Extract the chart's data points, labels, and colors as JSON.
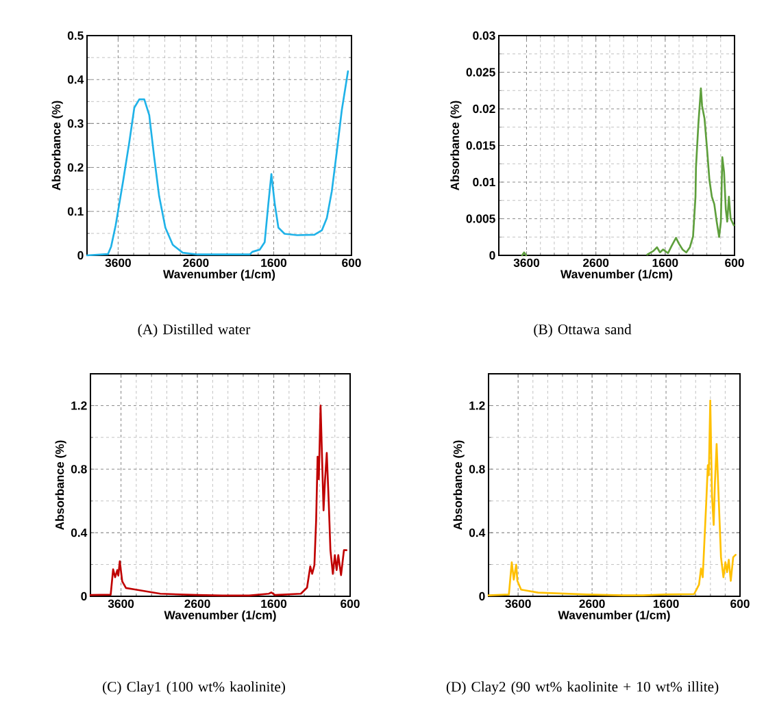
{
  "chart_data": [
    {
      "type": "line",
      "title": "(A) Distilled water",
      "xlabel": "Wavenumber  (1/cm)",
      "ylabel": "Absorbance  (%)",
      "xlim": [
        4000,
        600
      ],
      "xticks": [
        3600,
        2600,
        1600,
        600
      ],
      "ylim": [
        0,
        0.5
      ],
      "yticks": [
        0,
        0.1,
        0.2,
        0.3,
        0.4,
        0.5
      ],
      "grid": true,
      "marker": "none",
      "series": [
        {
          "color": "#1fb2e8",
          "x": [
            4000,
            3730,
            3690,
            3632,
            3536,
            3456,
            3392,
            3328,
            3264,
            3200,
            3137,
            3073,
            2993,
            2898,
            2770,
            2578,
            1907,
            1875,
            1780,
            1716,
            1668,
            1630,
            1588,
            1540,
            1460,
            1300,
            1077,
            981,
            917,
            853,
            789,
            725,
            645
          ],
          "values": [
            0,
            0.003,
            0.02,
            0.068,
            0.169,
            0.258,
            0.336,
            0.355,
            0.355,
            0.319,
            0.224,
            0.135,
            0.063,
            0.024,
            0.006,
            0.002,
            0.002,
            0.008,
            0.013,
            0.03,
            0.119,
            0.185,
            0.119,
            0.063,
            0.049,
            0.046,
            0.047,
            0.057,
            0.085,
            0.146,
            0.236,
            0.33,
            0.419
          ]
        }
      ]
    },
    {
      "type": "line",
      "title": "(B) Ottawa sand",
      "xlabel": "Wavenumber  (1/cm)",
      "ylabel": "Absorbance  (%)",
      "xlim": [
        4000,
        600
      ],
      "xticks": [
        3600,
        2600,
        1600,
        600
      ],
      "ylim": [
        0,
        0.03
      ],
      "yticks": [
        0,
        0.005,
        0.01,
        0.015,
        0.02,
        0.025,
        0.03
      ],
      "grid": true,
      "marker": "none",
      "series": [
        {
          "color": "#5e9f3c",
          "x": [
            3665,
            3635,
            3605,
            3000,
            1859,
            1771,
            1718,
            1676,
            1631,
            1560,
            1507,
            1444,
            1402,
            1349,
            1296,
            1244,
            1198,
            1163,
            1156,
            1121,
            1085,
            1068,
            1033,
            998,
            962,
            927,
            892,
            857,
            822,
            797,
            776,
            751,
            726,
            705,
            681,
            656,
            610
          ],
          "values": [
            0,
            0.0004,
            0,
            null,
            0.0001,
            0.0006,
            0.0011,
            0.0004,
            0.0008,
            0.0003,
            0.0013,
            0.0024,
            0.0016,
            0.0008,
            0.0004,
            0.0011,
            0.0026,
            0.008,
            0.012,
            0.018,
            0.0228,
            0.0204,
            0.0187,
            0.0147,
            0.0103,
            0.008,
            0.007,
            0.0046,
            0.0025,
            0.0046,
            0.0134,
            0.0114,
            0.0063,
            0.0046,
            0.008,
            0.005,
            0.0041
          ]
        }
      ]
    },
    {
      "type": "line",
      "title": "(C) Clay1 (100 wt% kaolinite)",
      "xlabel": "Wavenumber  (1/cm)",
      "ylabel": "Absorbance  (%)",
      "xlim": [
        4000,
        600
      ],
      "xticks": [
        3600,
        2600,
        1600,
        600
      ],
      "ylim": [
        0,
        1.4
      ],
      "yticks": [
        0,
        0.4,
        0.8,
        1.2
      ],
      "grid": true,
      "marker": "none",
      "series": [
        {
          "color": "#c00000",
          "x": [
            4000,
            3735,
            3703,
            3677,
            3648,
            3635,
            3616,
            3584,
            3535,
            3406,
            3084,
            2600,
            2277,
            1923,
            1665,
            1632,
            1584,
            1245,
            1164,
            1122,
            1097,
            1068,
            1045,
            1026,
            1010,
            987,
            948,
            929,
            906,
            881,
            858,
            826,
            800,
            777,
            755,
            719,
            681,
            648
          ],
          "values": [
            0.008,
            0.01,
            0.17,
            0.12,
            0.165,
            0.13,
            0.22,
            0.094,
            0.052,
            0.042,
            0.016,
            0.008,
            0.005,
            0.005,
            0.016,
            0.024,
            0.008,
            0.016,
            0.055,
            0.188,
            0.141,
            0.196,
            0.478,
            0.878,
            0.737,
            1.2,
            0.541,
            0.729,
            0.902,
            0.604,
            0.29,
            0.141,
            0.259,
            0.165,
            0.259,
            0.133,
            0.29,
            0.29
          ]
        }
      ]
    },
    {
      "type": "line",
      "title": "(D) Clay2 (90 wt% kaolinite + 10 wt% illite)",
      "xlabel": "Wavenumber  (1/cm)",
      "ylabel": "Absorbance  (%)",
      "xlim": [
        4000,
        600
      ],
      "xticks": [
        3600,
        2600,
        1600,
        600
      ],
      "ylim": [
        0,
        1.4
      ],
      "yticks": [
        0,
        0.4,
        0.8,
        1.2
      ],
      "grid": true,
      "marker": "none",
      "series": [
        {
          "color": "#ffc000",
          "x": [
            4000,
            3725,
            3686,
            3659,
            3626,
            3610,
            3560,
            3330,
            2670,
            2176,
            1912,
            1615,
            1220,
            1154,
            1127,
            1104,
            1055,
            1035,
            1022,
            1002,
            979,
            956,
            939,
            916,
            890,
            857,
            824,
            798,
            775,
            752,
            725,
            692,
            659
          ],
          "values": [
            0.006,
            0.011,
            0.214,
            0.105,
            0.199,
            0.097,
            0.042,
            0.023,
            0.011,
            0.006,
            0.006,
            0.011,
            0.014,
            0.074,
            0.175,
            0.12,
            0.606,
            0.825,
            0.762,
            1.232,
            0.637,
            0.449,
            0.715,
            0.958,
            0.637,
            0.246,
            0.12,
            0.214,
            0.152,
            0.23,
            0.097,
            0.246,
            0.261
          ]
        }
      ]
    }
  ]
}
